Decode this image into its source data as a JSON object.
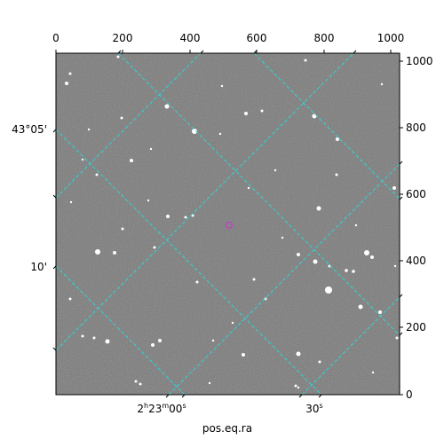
{
  "axes": {
    "top_ticks": [
      "0",
      "200",
      "400",
      "600",
      "800",
      "1000"
    ],
    "right_ticks": [
      "0",
      "200",
      "400",
      "600",
      "800",
      "1000"
    ],
    "left_ticks": [
      "43°05'",
      "10'"
    ],
    "bottom_ticks": [
      "2h23m00s",
      "30s"
    ],
    "bottom_tick_parts": {
      "hours": "2",
      "h": "h",
      "minutes": "23",
      "m": "m",
      "seconds": "00",
      "s": "s",
      "sec2": "30",
      "s2": "s"
    },
    "xlabel": "pos.eq.ra"
  },
  "image": {
    "background_color": "#7a7a7a",
    "grid_color": "#2fd6d6",
    "marker_color": "#c040c0"
  }
}
